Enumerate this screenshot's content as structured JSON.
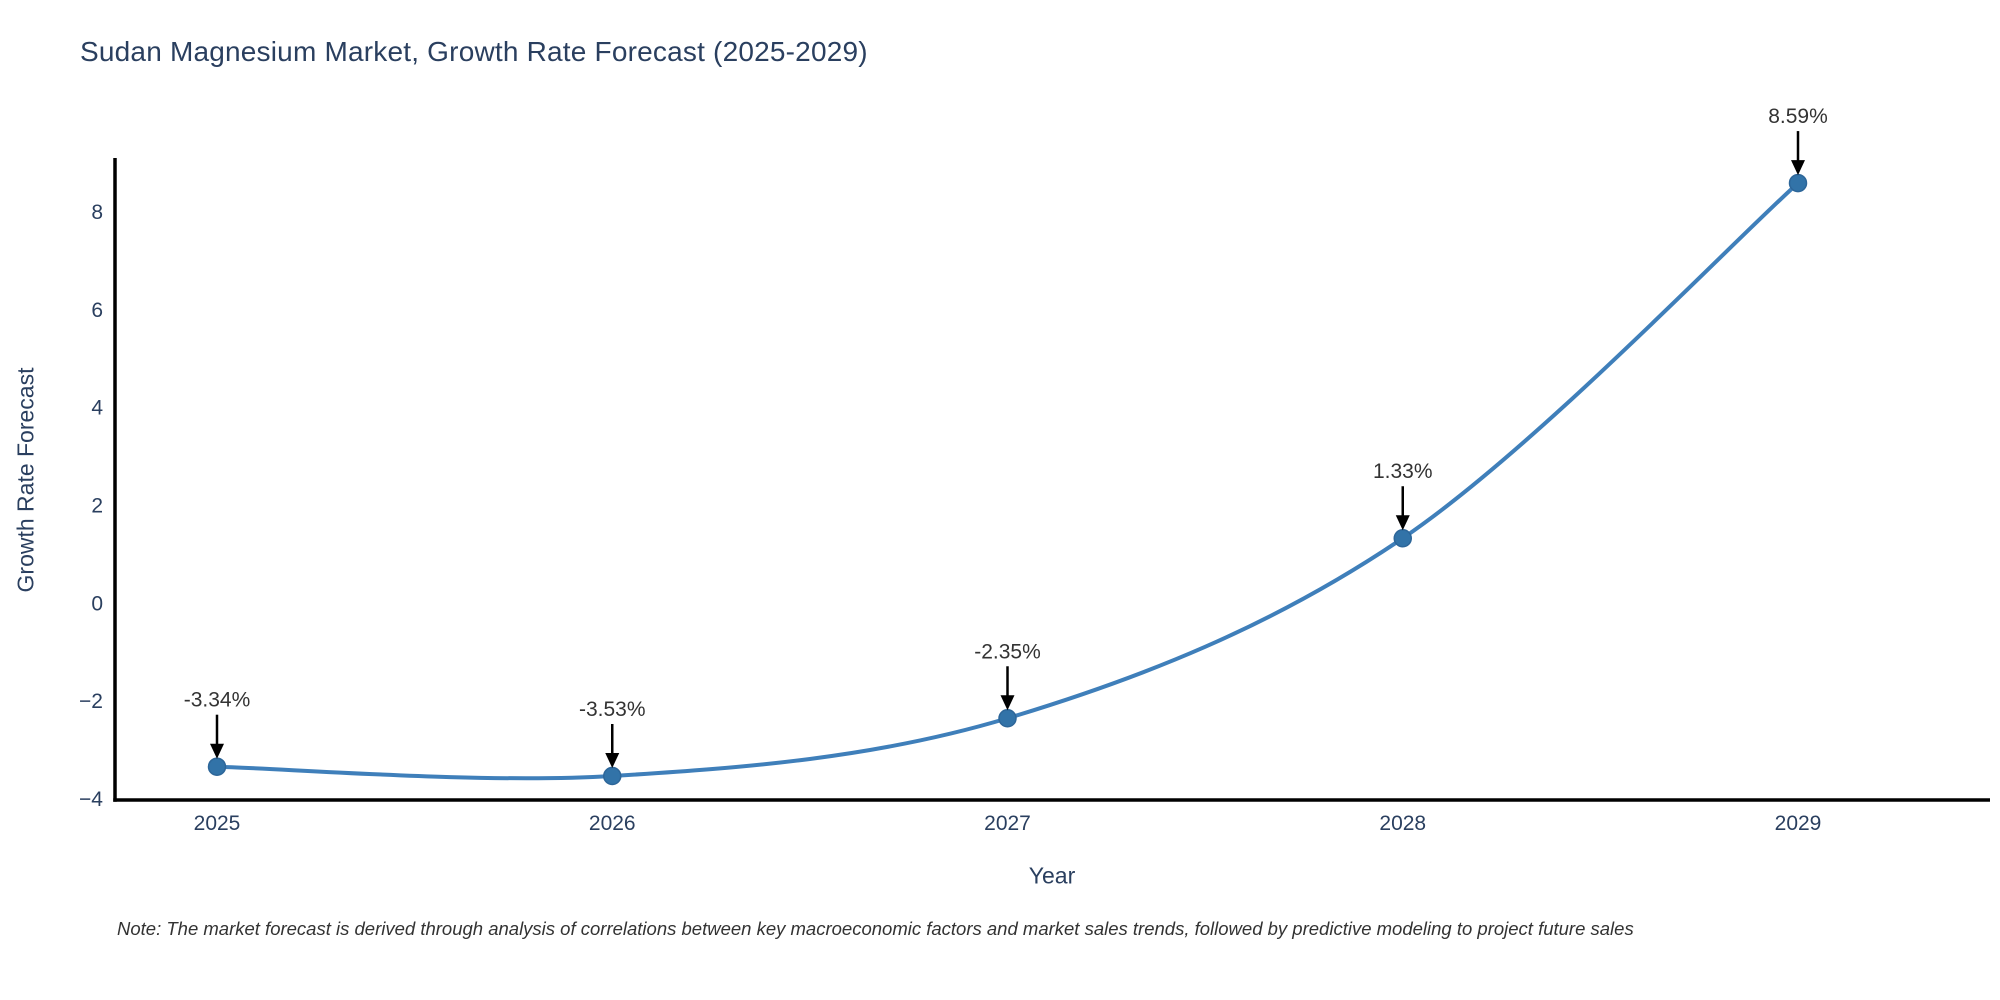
{
  "title": "Sudan Magnesium Market, Growth Rate Forecast (2025-2029)",
  "chart_data": {
    "type": "line",
    "title": "Sudan Magnesium Market, Growth Rate Forecast (2025-2029)",
    "x": [
      2025,
      2026,
      2027,
      2028,
      2029
    ],
    "series": [
      {
        "name": "Growth Rate Forecast",
        "values": [
          -3.34,
          -3.53,
          -2.35,
          1.33,
          8.59
        ]
      }
    ],
    "point_labels": [
      "-3.34%",
      "-3.53%",
      "-2.35%",
      "1.33%",
      "8.59%"
    ],
    "xlabel": "Year",
    "ylabel": "Growth Rate Forecast",
    "ylim": [
      -4.1,
      9.4
    ],
    "yticks": [
      {
        "label": "8",
        "value": 8
      },
      {
        "label": "6",
        "value": 6
      },
      {
        "label": "4",
        "value": 4
      },
      {
        "label": "2",
        "value": 2
      },
      {
        "label": "0",
        "value": 0
      },
      {
        "label": "−2",
        "value": -2
      },
      {
        "label": "−4",
        "value": -4
      }
    ],
    "line_shape": "spline",
    "grid": false,
    "legend": "none",
    "colors": {
      "line": "#3f7fba",
      "marker_fill": "#3273a8",
      "marker_edge": "#2d6699",
      "axis_line": "#000000",
      "tick_text": "#2a3f5f",
      "annotation_text": "#333333",
      "arrow": "#000000"
    }
  },
  "note": "Note: The market forecast is derived through analysis of correlations between key macroeconomic factors and market sales trends, followed by predictive modeling to project future sales"
}
